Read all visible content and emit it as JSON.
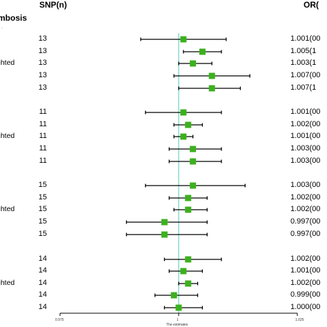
{
  "headers": {
    "snp": "SNP(n)",
    "or": "OR(",
    "outcome": "mbosis"
  },
  "chart_data": {
    "type": "forest",
    "xlabel": "The estimates",
    "xlim": [
      0.975,
      1.025
    ],
    "xticks": [
      "0.975",
      "1",
      "1.025"
    ],
    "reference_line": 1.0,
    "groups": [
      {
        "weighted_label": "ghted",
        "rows": [
          {
            "snp": "13",
            "est": 1.001,
            "lo": 0.992,
            "hi": 1.01,
            "or_text": "1.001(00"
          },
          {
            "snp": "13",
            "est": 1.005,
            "lo": 1.001,
            "hi": 1.009,
            "or_text": "1.005(1"
          },
          {
            "snp": "13",
            "est": 1.003,
            "lo": 1.0,
            "hi": 1.007,
            "or_text": "1.003(1"
          },
          {
            "snp": "13",
            "est": 1.007,
            "lo": 0.999,
            "hi": 1.015,
            "or_text": "1.007(00"
          },
          {
            "snp": "13",
            "est": 1.007,
            "lo": 1.0,
            "hi": 1.013,
            "or_text": "1.007(1"
          }
        ]
      },
      {
        "weighted_label": "ghted",
        "rows": [
          {
            "snp": "11",
            "est": 1.001,
            "lo": 0.993,
            "hi": 1.009,
            "or_text": "1.001(00"
          },
          {
            "snp": "11",
            "est": 1.002,
            "lo": 0.999,
            "hi": 1.005,
            "or_text": "1.002(00"
          },
          {
            "snp": "11",
            "est": 1.001,
            "lo": 0.999,
            "hi": 1.003,
            "or_text": "1.001(00"
          },
          {
            "snp": "11",
            "est": 1.003,
            "lo": 0.998,
            "hi": 1.009,
            "or_text": "1.003(00"
          },
          {
            "snp": "11",
            "est": 1.003,
            "lo": 0.998,
            "hi": 1.009,
            "or_text": "1.003(00"
          }
        ]
      },
      {
        "weighted_label": "ghted",
        "rows": [
          {
            "snp": "15",
            "est": 1.003,
            "lo": 0.993,
            "hi": 1.014,
            "or_text": "1.003(00"
          },
          {
            "snp": "15",
            "est": 1.002,
            "lo": 0.998,
            "hi": 1.006,
            "or_text": "1.002(00"
          },
          {
            "snp": "15",
            "est": 1.002,
            "lo": 0.999,
            "hi": 1.006,
            "or_text": "1.002(00"
          },
          {
            "snp": "15",
            "est": 0.997,
            "lo": 0.989,
            "hi": 1.006,
            "or_text": "0.997(00"
          },
          {
            "snp": "15",
            "est": 0.997,
            "lo": 0.989,
            "hi": 1.006,
            "or_text": "0.997(00"
          }
        ]
      },
      {
        "weighted_label": "ghted",
        "rows": [
          {
            "snp": "14",
            "est": 1.002,
            "lo": 0.997,
            "hi": 1.009,
            "or_text": "1.002(00"
          },
          {
            "snp": "14",
            "est": 1.001,
            "lo": 0.998,
            "hi": 1.005,
            "or_text": "1.001(00"
          },
          {
            "snp": "14",
            "est": 1.002,
            "lo": 1.0,
            "hi": 1.004,
            "or_text": "1.002(00"
          },
          {
            "snp": "14",
            "est": 0.999,
            "lo": 0.995,
            "hi": 1.004,
            "or_text": "0.999(00"
          },
          {
            "snp": "14",
            "est": 1.0,
            "lo": 0.997,
            "hi": 1.005,
            "or_text": "1.000(00"
          }
        ]
      }
    ],
    "colors": {
      "point": "#3cb01e",
      "ci": "#000000",
      "ref": "#7fd8c8",
      "axis": "#000000"
    }
  }
}
